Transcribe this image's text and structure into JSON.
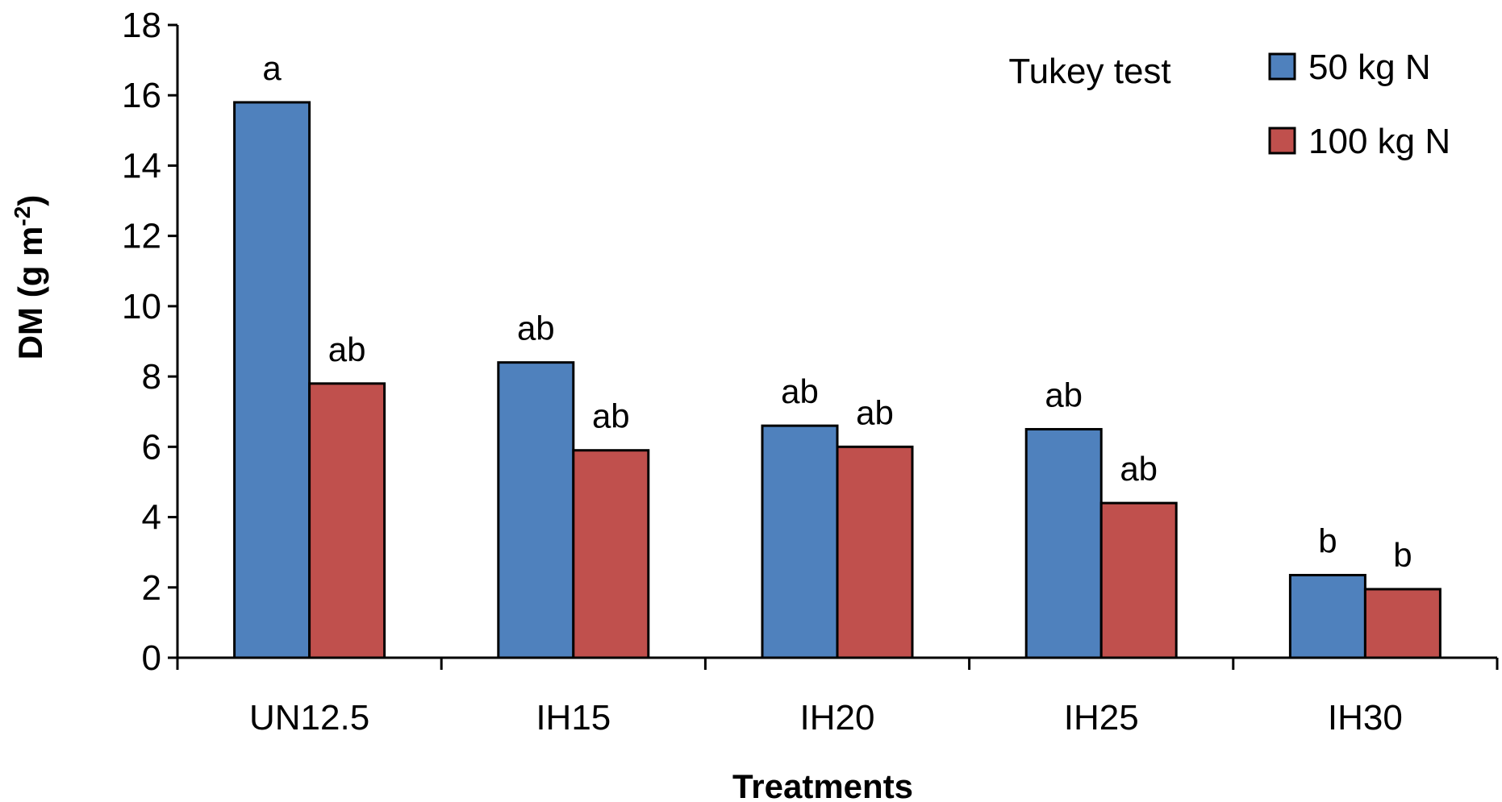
{
  "chart_data": {
    "type": "bar",
    "title": "",
    "xlabel": "Treatments",
    "ylabel": {
      "main": "DM (g m",
      "superscript": "-2",
      "suffix": ")"
    },
    "ylim": [
      0,
      18
    ],
    "yticks": [
      "0",
      "2",
      "4",
      "6",
      "8",
      "10",
      "12",
      "14",
      "16",
      "18"
    ],
    "categories": [
      "UN12.5",
      "IH15",
      "IH20",
      "IH25",
      "IH30"
    ],
    "series": [
      {
        "name": "50 kg N",
        "color": "#4F81BD",
        "values": [
          15.8,
          8.4,
          6.6,
          6.5,
          2.35
        ],
        "labels": [
          "a",
          "ab",
          "ab",
          "ab",
          "b"
        ]
      },
      {
        "name": "100 kg N",
        "color": "#C0504D",
        "values": [
          7.8,
          5.9,
          6.0,
          4.4,
          1.95
        ],
        "labels": [
          "ab",
          "ab",
          "ab",
          "ab",
          "b"
        ]
      }
    ],
    "annotation": "Tukey test",
    "legend_position": "top-right",
    "grid": false
  }
}
